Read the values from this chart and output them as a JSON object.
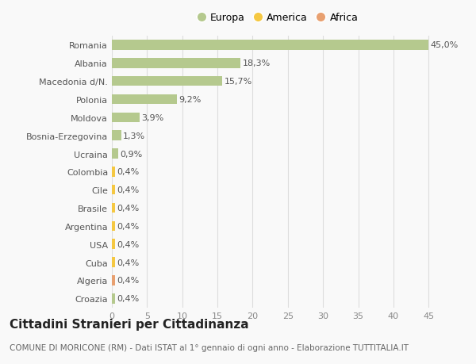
{
  "categories": [
    "Croazia",
    "Algeria",
    "Cuba",
    "USA",
    "Argentina",
    "Brasile",
    "Cile",
    "Colombia",
    "Ucraina",
    "Bosnia-Erzegovina",
    "Moldova",
    "Polonia",
    "Macedonia d/N.",
    "Albania",
    "Romania"
  ],
  "values": [
    0.4,
    0.4,
    0.4,
    0.4,
    0.4,
    0.4,
    0.4,
    0.4,
    0.9,
    1.3,
    3.9,
    9.2,
    15.7,
    18.3,
    45.0
  ],
  "labels": [
    "0,4%",
    "0,4%",
    "0,4%",
    "0,4%",
    "0,4%",
    "0,4%",
    "0,4%",
    "0,4%",
    "0,9%",
    "1,3%",
    "3,9%",
    "9,2%",
    "15,7%",
    "18,3%",
    "45,0%"
  ],
  "colors": [
    "#b5c98e",
    "#e8a070",
    "#f5c842",
    "#f5c842",
    "#f5c842",
    "#f5c842",
    "#f5c842",
    "#f5c842",
    "#b5c98e",
    "#b5c98e",
    "#b5c98e",
    "#b5c98e",
    "#b5c98e",
    "#b5c98e",
    "#b5c98e"
  ],
  "legend_labels": [
    "Europa",
    "America",
    "Africa"
  ],
  "legend_colors": [
    "#b5c98e",
    "#f5c842",
    "#e8a070"
  ],
  "title": "Cittadini Stranieri per Cittadinanza",
  "subtitle": "COMUNE DI MORICONE (RM) - Dati ISTAT al 1° gennaio di ogni anno - Elaborazione TUTTITALIA.IT",
  "xlim": [
    0,
    47
  ],
  "xticks": [
    0,
    5,
    10,
    15,
    20,
    25,
    30,
    35,
    40,
    45
  ],
  "bg_color": "#f9f9f9",
  "bar_height": 0.55,
  "title_fontsize": 11,
  "subtitle_fontsize": 7.5,
  "tick_fontsize": 8,
  "label_fontsize": 8
}
